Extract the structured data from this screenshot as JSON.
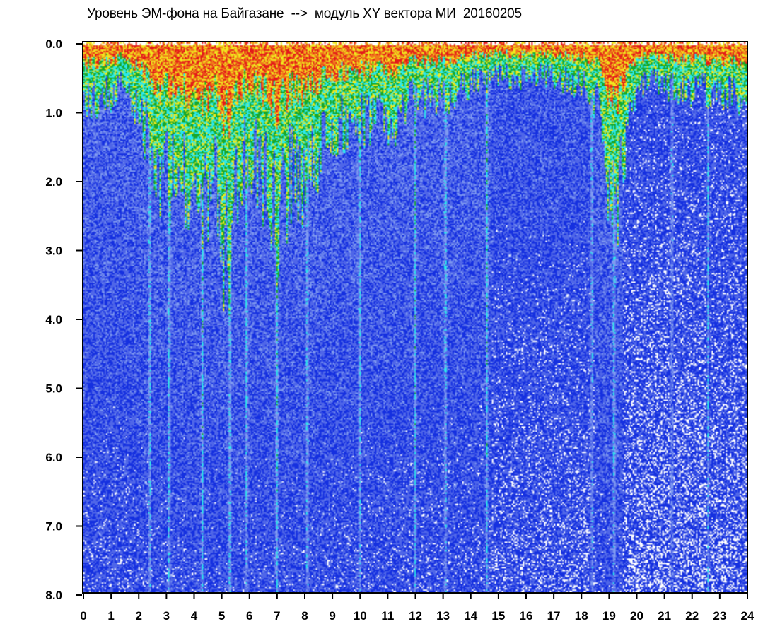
{
  "chart_data": {
    "type": "heatmap",
    "title": "Уровень ЭМ-фона на Байгазане  -->  модуль XY вектора МИ  20160205",
    "xlabel": "",
    "ylabel": "",
    "xlim": [
      0,
      24
    ],
    "ylim": [
      8.0,
      0.0
    ],
    "y_axis_inverted": true,
    "x_ticks": [
      "0",
      "1",
      "2",
      "3",
      "4",
      "5",
      "6",
      "7",
      "8",
      "9",
      "10",
      "11",
      "12",
      "13",
      "14",
      "15",
      "16",
      "17",
      "18",
      "19",
      "20",
      "21",
      "22",
      "23",
      "24"
    ],
    "y_ticks": [
      "0.0",
      "1.0",
      "2.0",
      "3.0",
      "4.0",
      "5.0",
      "6.0",
      "7.0",
      "8.0"
    ],
    "grid": false,
    "colorscale": [
      "#1530e0",
      "#4f66e8",
      "#7f9af0",
      "#2be8ec",
      "#19a82a",
      "#f0e81e",
      "#f07a1a",
      "#e41a1a"
    ],
    "hot_top_hours": [
      {
        "x": 0.2,
        "y": 0.8
      },
      {
        "x": 0.9,
        "y": 0.8
      },
      {
        "x": 1.5,
        "y": 0.6
      },
      {
        "x": 2.3,
        "y": 1.3
      },
      {
        "x": 2.8,
        "y": 2.2
      },
      {
        "x": 3.4,
        "y": 2.0
      },
      {
        "x": 4.3,
        "y": 2.4
      },
      {
        "x": 4.7,
        "y": 1.8
      },
      {
        "x": 5.2,
        "y": 3.2
      },
      {
        "x": 5.8,
        "y": 1.8
      },
      {
        "x": 6.2,
        "y": 1.7
      },
      {
        "x": 7.0,
        "y": 2.6
      },
      {
        "x": 7.6,
        "y": 1.8
      },
      {
        "x": 8.1,
        "y": 2.2
      },
      {
        "x": 8.6,
        "y": 1.6
      },
      {
        "x": 9.3,
        "y": 1.2
      },
      {
        "x": 10.2,
        "y": 1.1
      },
      {
        "x": 11.0,
        "y": 1.2
      },
      {
        "x": 12.0,
        "y": 0.8
      },
      {
        "x": 13.0,
        "y": 0.8
      },
      {
        "x": 14.0,
        "y": 0.6
      },
      {
        "x": 15.0,
        "y": 0.5
      },
      {
        "x": 16.0,
        "y": 0.5
      },
      {
        "x": 17.0,
        "y": 0.5
      },
      {
        "x": 18.0,
        "y": 0.6
      },
      {
        "x": 18.6,
        "y": 0.9
      },
      {
        "x": 19.2,
        "y": 2.6
      },
      {
        "x": 20.0,
        "y": 0.6
      },
      {
        "x": 21.0,
        "y": 0.6
      },
      {
        "x": 22.0,
        "y": 0.7
      },
      {
        "x": 23.0,
        "y": 0.7
      },
      {
        "x": 23.9,
        "y": 0.8
      }
    ],
    "cyan_streak_hours": [
      2.4,
      3.1,
      4.3,
      5.3,
      5.9,
      7.0,
      8.1,
      10.0,
      12.0,
      13.1,
      14.6,
      18.4,
      19.2,
      21.3,
      22.6
    ]
  }
}
